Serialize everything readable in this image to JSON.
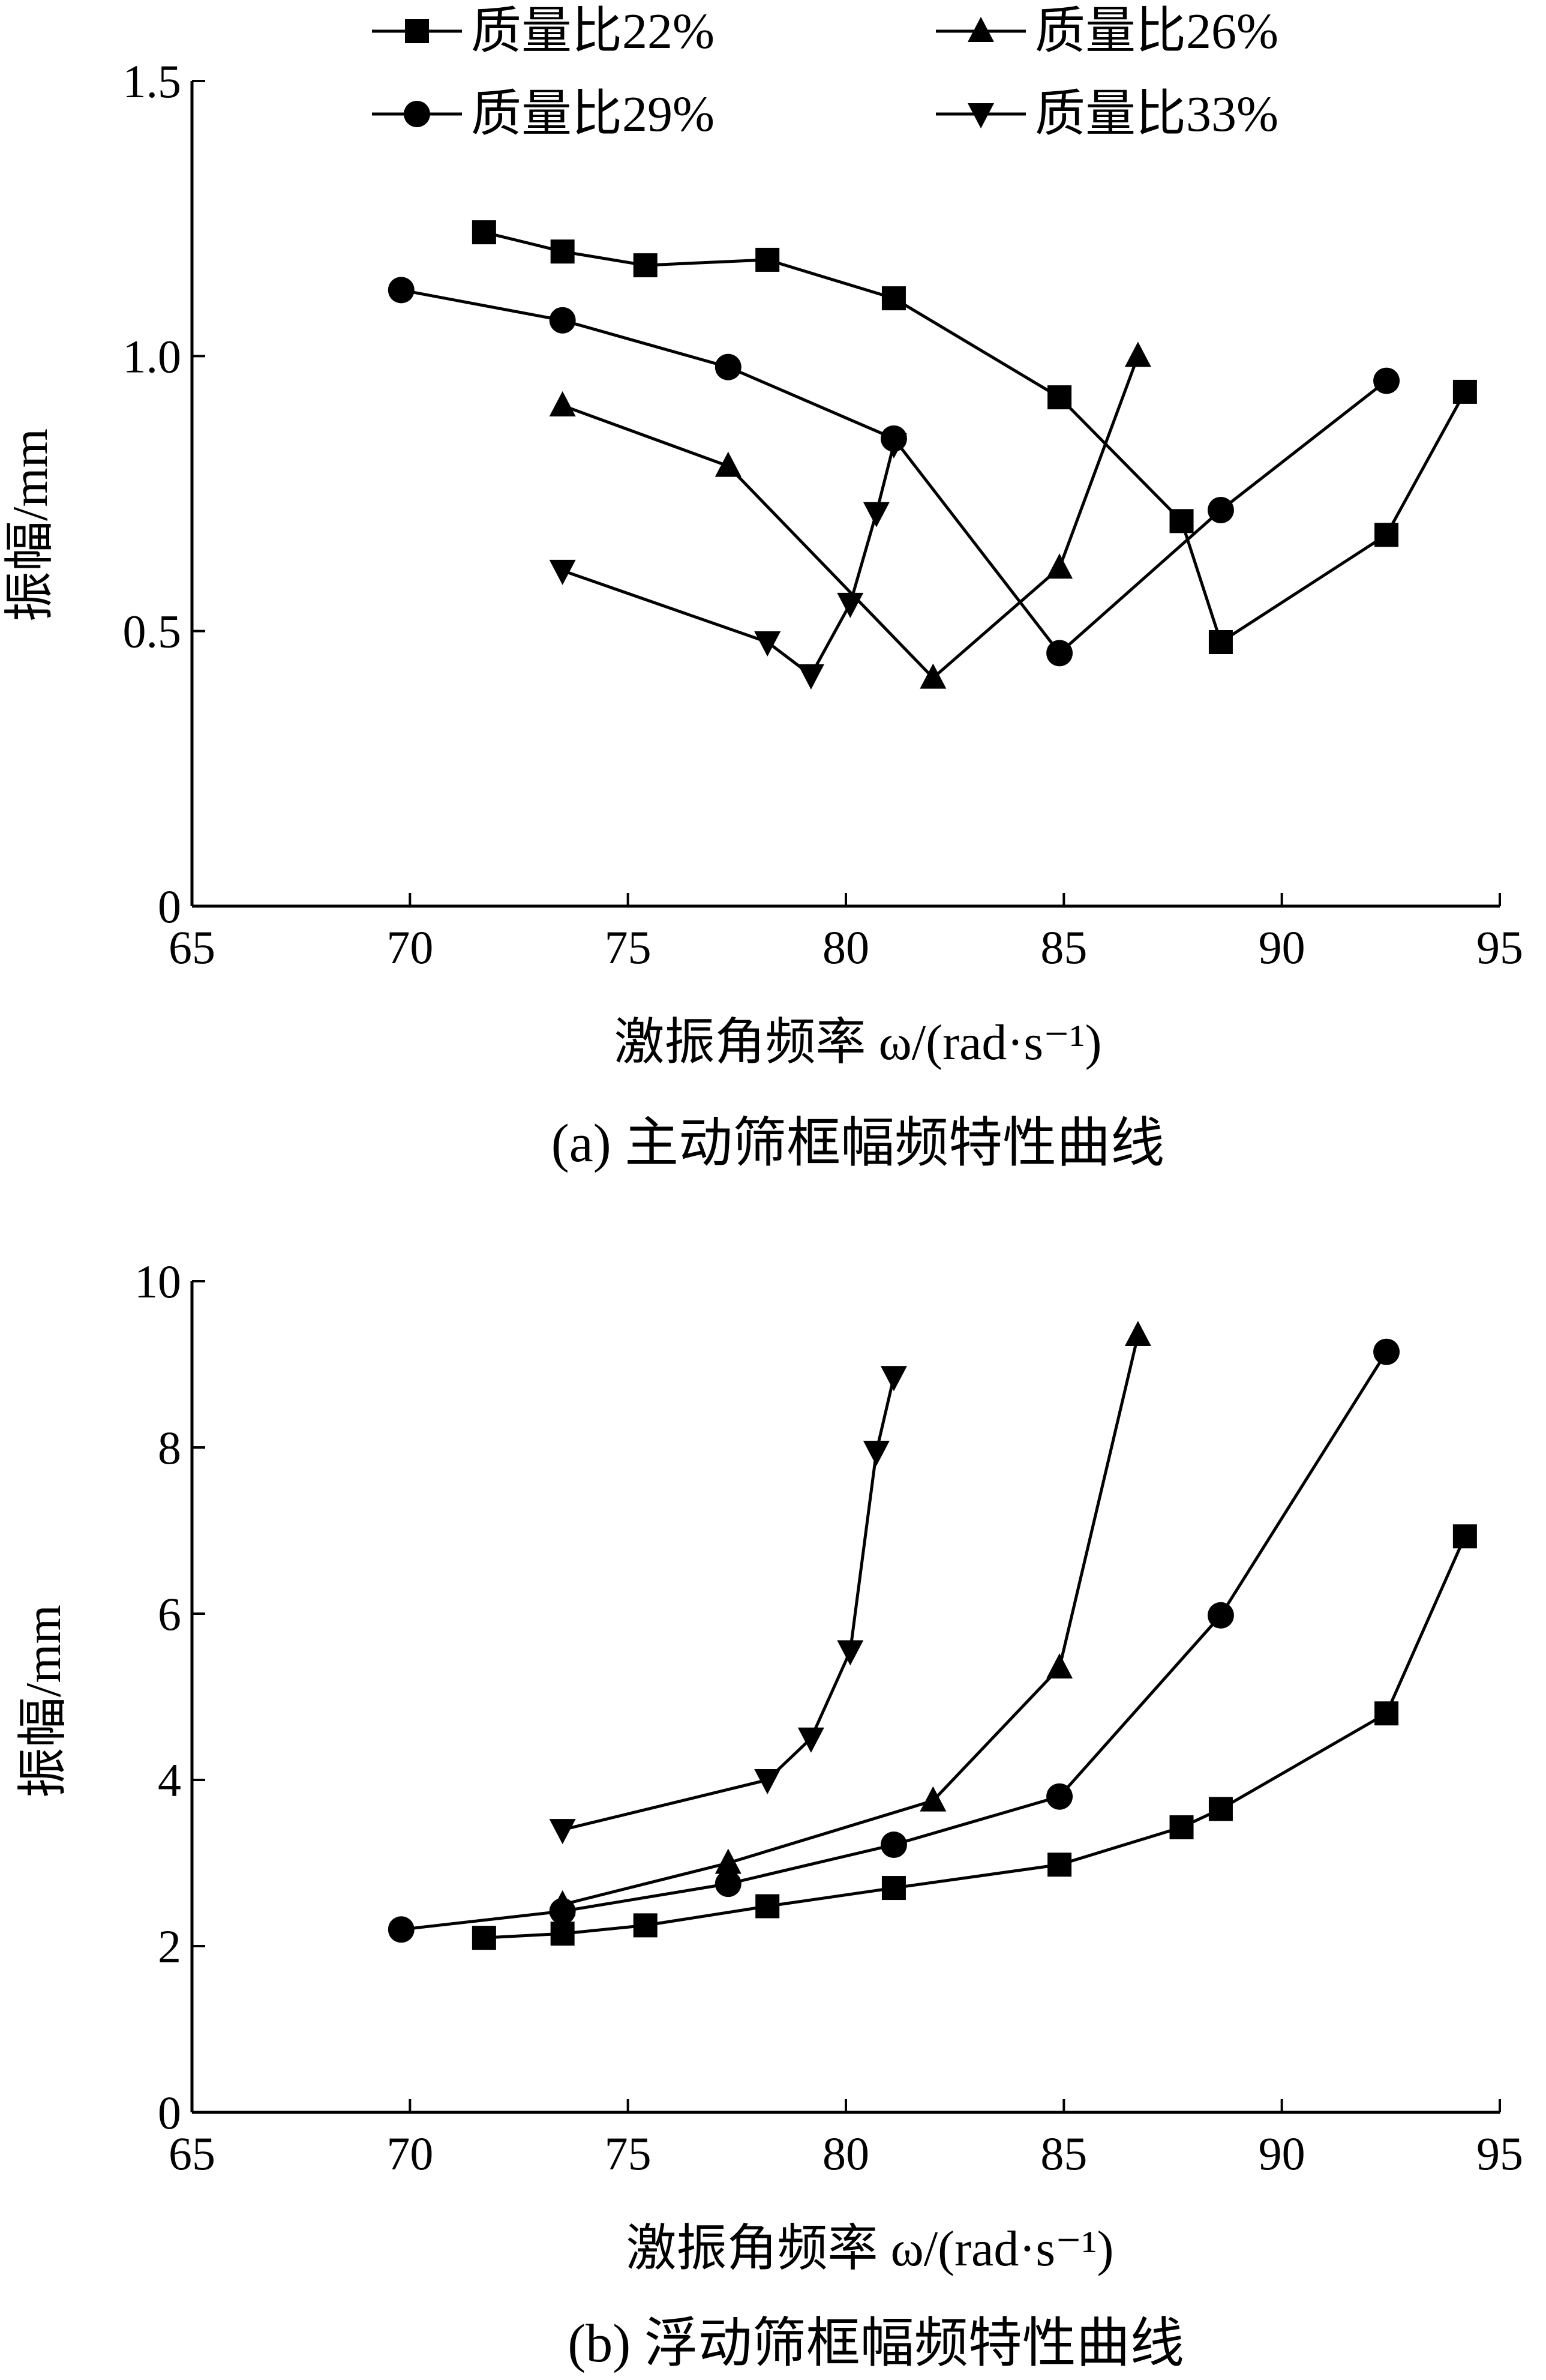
{
  "legend": {
    "entries": [
      {
        "label": "质量比22%",
        "marker": "square"
      },
      {
        "label": "质量比26%",
        "marker": "triangle-up"
      },
      {
        "label": "质量比29%",
        "marker": "circle"
      },
      {
        "label": "质量比33%",
        "marker": "triangle-down"
      }
    ]
  },
  "chart_data": [
    {
      "type": "line",
      "caption": "(a) 主动筛框幅频特性曲线",
      "xlabel": "激振角频率 ω/(rad·s⁻¹)",
      "ylabel": "振幅/mm",
      "xlim": [
        65,
        95
      ],
      "ylim": [
        0,
        1.5
      ],
      "xticks": [
        65,
        70,
        75,
        80,
        85,
        90,
        95
      ],
      "yticks": [
        0,
        0.5,
        1.0,
        1.5
      ],
      "ytick_labels": [
        "0",
        "0.5",
        "1.0",
        "1.5"
      ],
      "grid": false,
      "legend_position": "top",
      "series": [
        {
          "name": "质量比22%",
          "marker": "square",
          "x": [
            71.7,
            73.5,
            75.4,
            78.2,
            81.1,
            84.9,
            87.7,
            88.6,
            92.4,
            94.2
          ],
          "y": [
            1.225,
            1.19,
            1.165,
            1.175,
            1.105,
            0.925,
            0.7,
            0.48,
            0.675,
            0.935
          ]
        },
        {
          "name": "质量比26%",
          "marker": "triangle-up",
          "x": [
            73.5,
            77.3,
            82.0,
            84.9,
            86.7
          ],
          "y": [
            0.91,
            0.8,
            0.415,
            0.615,
            1.0
          ]
        },
        {
          "name": "质量比29%",
          "marker": "circle",
          "x": [
            69.8,
            73.5,
            77.3,
            81.1,
            84.9,
            88.6,
            92.4
          ],
          "y": [
            1.12,
            1.065,
            0.98,
            0.85,
            0.46,
            0.72,
            0.955
          ]
        },
        {
          "name": "质量比33%",
          "marker": "triangle-down",
          "x": [
            73.5,
            78.2,
            79.2,
            80.1,
            80.7,
            81.1
          ],
          "y": [
            0.61,
            0.48,
            0.42,
            0.55,
            0.715,
            0.84
          ]
        }
      ]
    },
    {
      "type": "line",
      "caption": "(b) 浮动筛框幅频特性曲线",
      "xlabel": "激振角频率 ω/(rad·s⁻¹)",
      "ylabel": "振幅/mm",
      "xlim": [
        65,
        95
      ],
      "ylim": [
        0,
        10
      ],
      "xticks": [
        65,
        70,
        75,
        80,
        85,
        90,
        95
      ],
      "yticks": [
        0,
        2,
        4,
        6,
        8,
        10
      ],
      "ytick_labels": [
        "0",
        "2",
        "4",
        "6",
        "8",
        "10"
      ],
      "grid": false,
      "series": [
        {
          "name": "质量比22%",
          "marker": "square",
          "x": [
            71.7,
            73.5,
            75.4,
            78.2,
            81.1,
            84.9,
            87.7,
            88.6,
            92.4,
            94.2
          ],
          "y": [
            2.1,
            2.15,
            2.25,
            2.48,
            2.7,
            2.98,
            3.43,
            3.65,
            4.8,
            6.93
          ]
        },
        {
          "name": "质量比26%",
          "marker": "triangle-up",
          "x": [
            73.5,
            77.3,
            82.0,
            84.9,
            86.7
          ],
          "y": [
            2.5,
            3.0,
            3.75,
            5.35,
            9.35
          ]
        },
        {
          "name": "质量比29%",
          "marker": "circle",
          "x": [
            69.8,
            73.5,
            77.3,
            81.1,
            84.9,
            88.6,
            92.4
          ],
          "y": [
            2.2,
            2.42,
            2.75,
            3.22,
            3.8,
            5.98,
            9.15
          ]
        },
        {
          "name": "质量比33%",
          "marker": "triangle-down",
          "x": [
            73.5,
            78.2,
            79.2,
            80.1,
            80.7,
            81.1
          ],
          "y": [
            3.4,
            4.0,
            4.5,
            5.55,
            7.95,
            8.85
          ]
        }
      ]
    }
  ]
}
